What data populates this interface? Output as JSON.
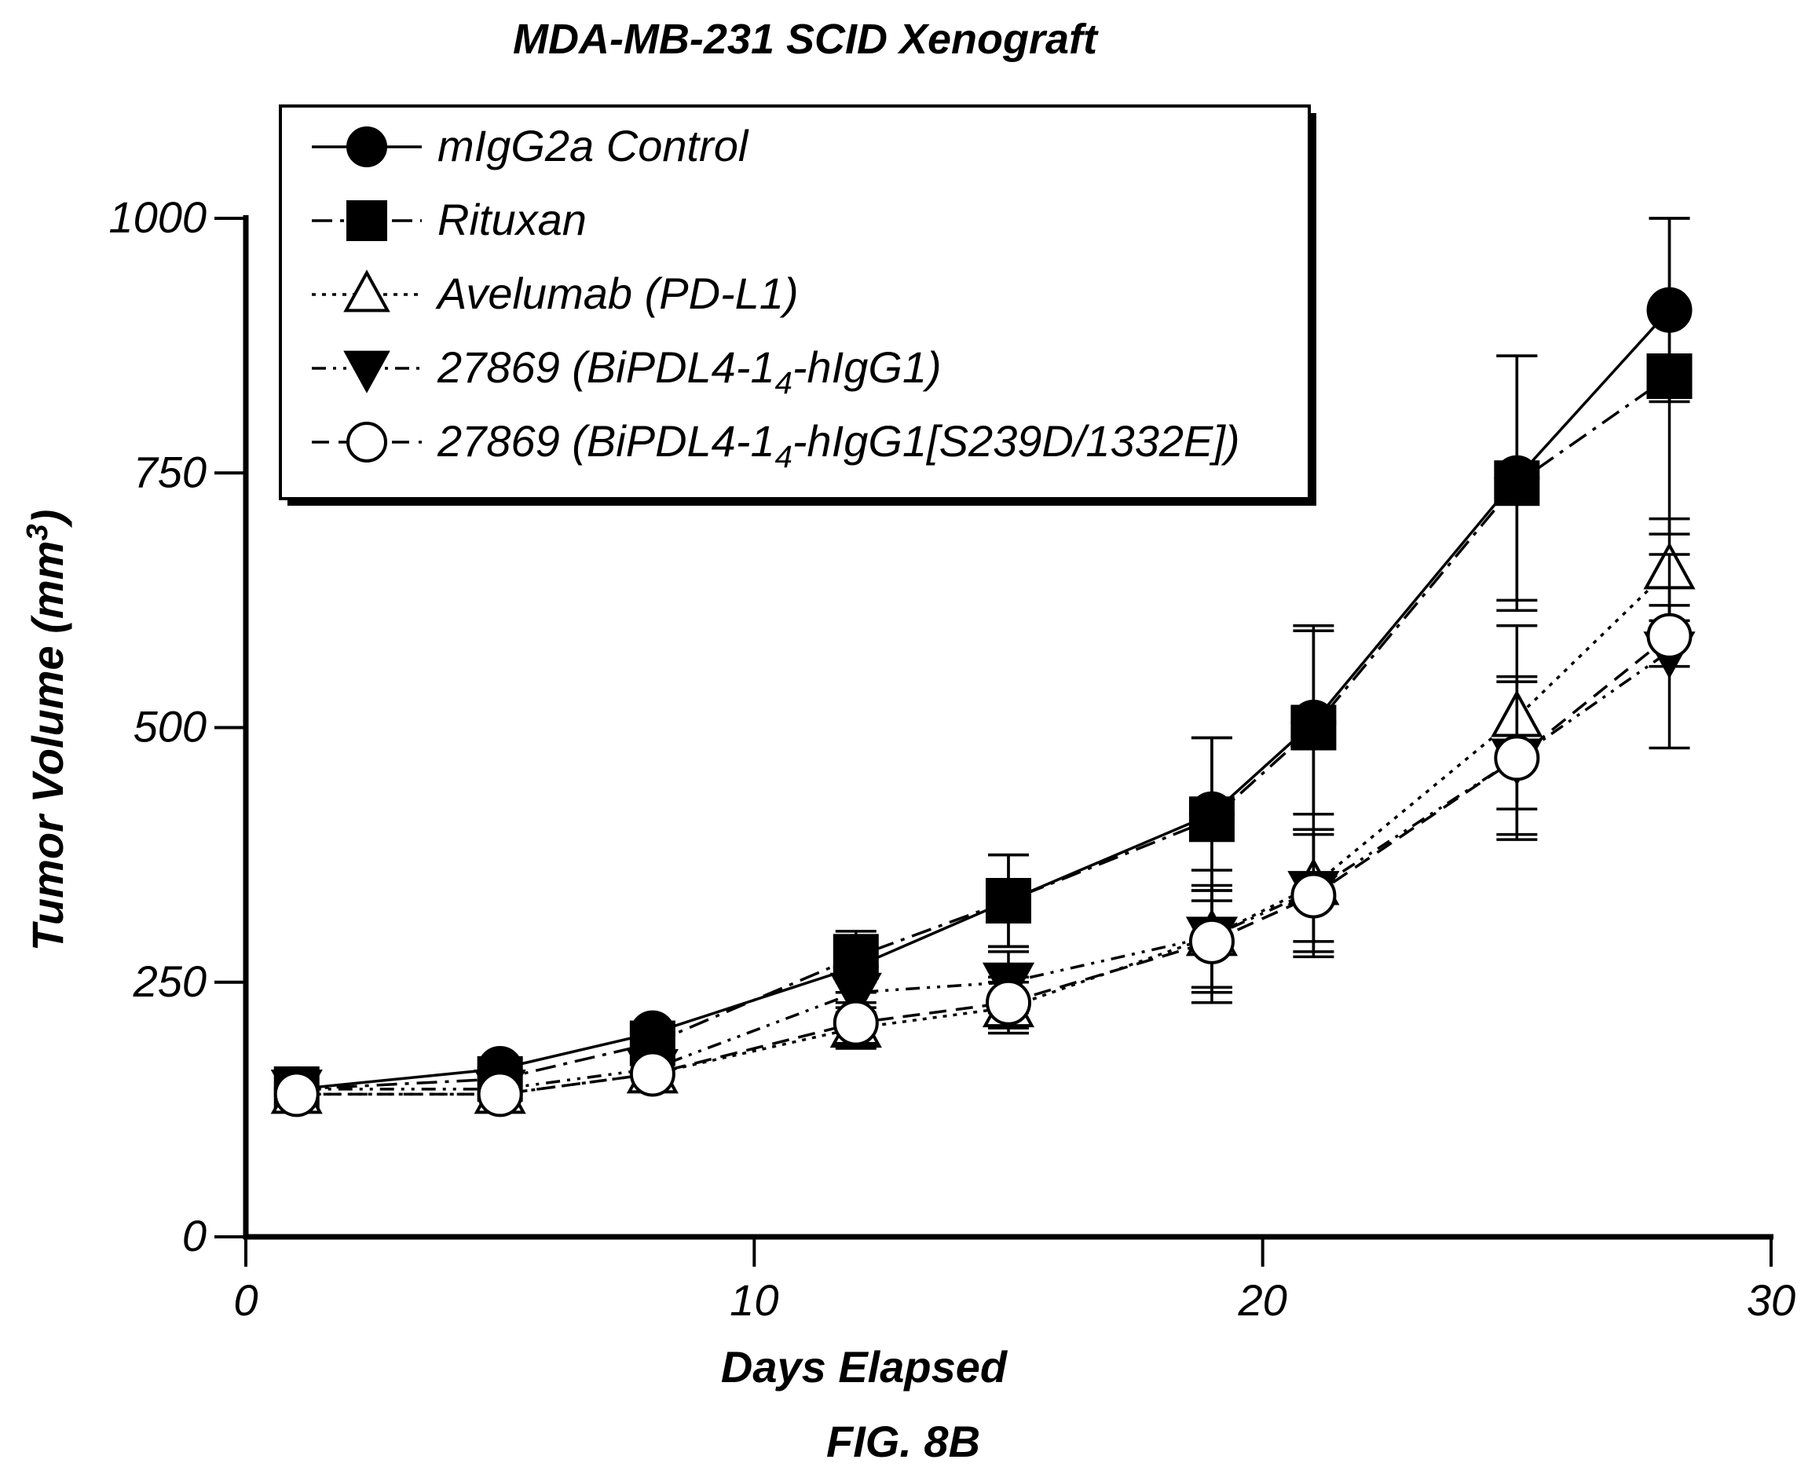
{
  "chart_data": {
    "type": "line",
    "title": "MDA-MB-231 SCID Xenograft",
    "xlabel": "Days Elapsed",
    "ylabel_main": "Tumor Volume (mm",
    "ylabel_sup": "3",
    "ylabel_close": ")",
    "caption": "FIG. 8B",
    "xlim": [
      0,
      30
    ],
    "ylim": [
      0,
      1000
    ],
    "xticks": [
      0,
      10,
      20,
      30
    ],
    "yticks": [
      0,
      250,
      500,
      750,
      1000
    ],
    "xtick_labels": [
      "0",
      "10",
      "20",
      "30"
    ],
    "ytick_labels": [
      "0",
      "250",
      "500",
      "750",
      "1000"
    ],
    "grid": false,
    "legend_position": "top-left",
    "x": [
      1,
      5,
      8,
      12,
      15,
      19,
      21,
      25,
      28
    ],
    "series": [
      {
        "name": "mIgG2a Control",
        "legend_parts": [
          {
            "text": "mIgG2a Control",
            "sub": false
          }
        ],
        "marker": "filled-circle",
        "line": "solid",
        "values": [
          145,
          165,
          200,
          265,
          330,
          415,
          505,
          745,
          910
        ],
        "errors": [
          0,
          0,
          0,
          25,
          45,
          75,
          90,
          120,
          90
        ]
      },
      {
        "name": "Rituxan",
        "legend_parts": [
          {
            "text": "Rituxan",
            "sub": false
          }
        ],
        "marker": "filled-square",
        "line": "dash-dot",
        "values": [
          145,
          155,
          190,
          275,
          330,
          410,
          500,
          740,
          845
        ],
        "errors": [
          0,
          0,
          0,
          25,
          45,
          80,
          100,
          125,
          155
        ]
      },
      {
        "name": "Avelumab (PD-L1)",
        "legend_parts": [
          {
            "text": "Avelumab (PD-L1)",
            "sub": false
          }
        ],
        "marker": "open-triangle-up",
        "line": "dotted",
        "values": [
          140,
          140,
          160,
          205,
          225,
          295,
          345,
          510,
          655
        ],
        "errors": [
          0,
          0,
          0,
          20,
          25,
          50,
          55,
          90,
          50
        ]
      },
      {
        "name": "27869 (BiPDL4-14-hIgG1)",
        "legend_parts": [
          {
            "text": "27869 (BiPDL4-1",
            "sub": false
          },
          {
            "text": "4",
            "sub": true
          },
          {
            "text": "-hIgG1)",
            "sub": false
          }
        ],
        "marker": "filled-triangle-down",
        "line": "dash-dot-dot",
        "values": [
          145,
          145,
          165,
          240,
          250,
          295,
          340,
          470,
          575
        ],
        "errors": [
          0,
          0,
          0,
          20,
          30,
          65,
          60,
          80,
          95
        ]
      },
      {
        "name": "27869 (BiPDL4-14-hIgG1[S239D/1332E])",
        "legend_parts": [
          {
            "text": "27869 (BiPDL4-1",
            "sub": false
          },
          {
            "text": "4",
            "sub": true
          },
          {
            "text": "-hIgG1[S239D/1332E])",
            "sub": false
          }
        ],
        "marker": "open-circle",
        "line": "dashed",
        "values": [
          140,
          140,
          160,
          210,
          230,
          290,
          335,
          470,
          590
        ],
        "errors": [
          0,
          0,
          0,
          20,
          25,
          50,
          60,
          75,
          30
        ]
      }
    ]
  },
  "colors": {
    "ink": "#000000",
    "background": "#ffffff"
  }
}
